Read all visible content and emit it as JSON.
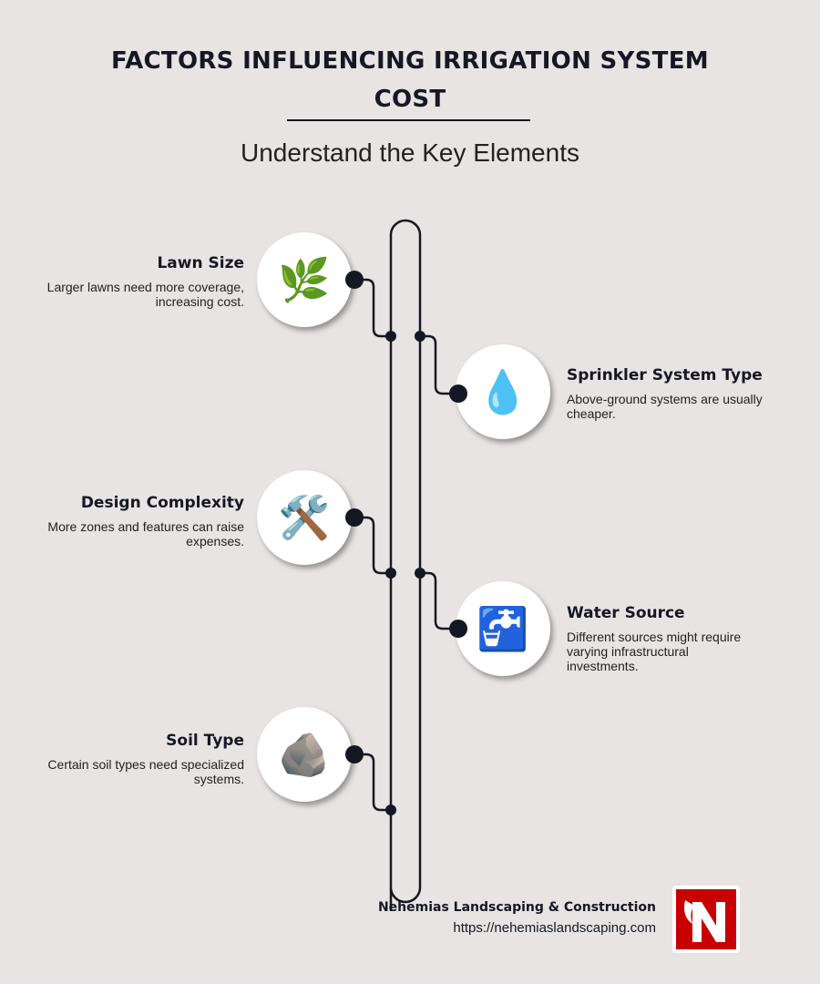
{
  "header": {
    "title": "FACTORS INFLUENCING IRRIGATION SYSTEM COST",
    "subtitle": "Understand the Key Elements"
  },
  "factors": [
    {
      "title": "Lawn Size",
      "text": "Larger lawns need more coverage, increasing cost.",
      "icon": "herb-icon",
      "glyph": "🌿",
      "side": "left"
    },
    {
      "title": "Sprinkler System Type",
      "text": "Above-ground systems are usually cheaper.",
      "icon": "droplet-icon",
      "glyph": "💧",
      "side": "right"
    },
    {
      "title": "Design Complexity",
      "text": "More zones and features can raise expenses.",
      "icon": "hammer-wrench-icon",
      "glyph": "🛠️",
      "side": "left"
    },
    {
      "title": "Water Source",
      "text": "Different sources might require varying infrastructural investments.",
      "icon": "faucet-icon",
      "glyph": "🚰",
      "side": "right"
    },
    {
      "title": "Soil Type",
      "text": "Certain soil types need specialized systems.",
      "icon": "rock-icon",
      "glyph": "🪨",
      "side": "left"
    }
  ],
  "footer": {
    "company": "Nehemias Landscaping & Construction",
    "url": "https://nehemiaslandscaping.com",
    "logo_letter": "N",
    "logo_color": "#c80000"
  },
  "colors": {
    "background": "#e7e4e3",
    "ink": "#151823"
  }
}
